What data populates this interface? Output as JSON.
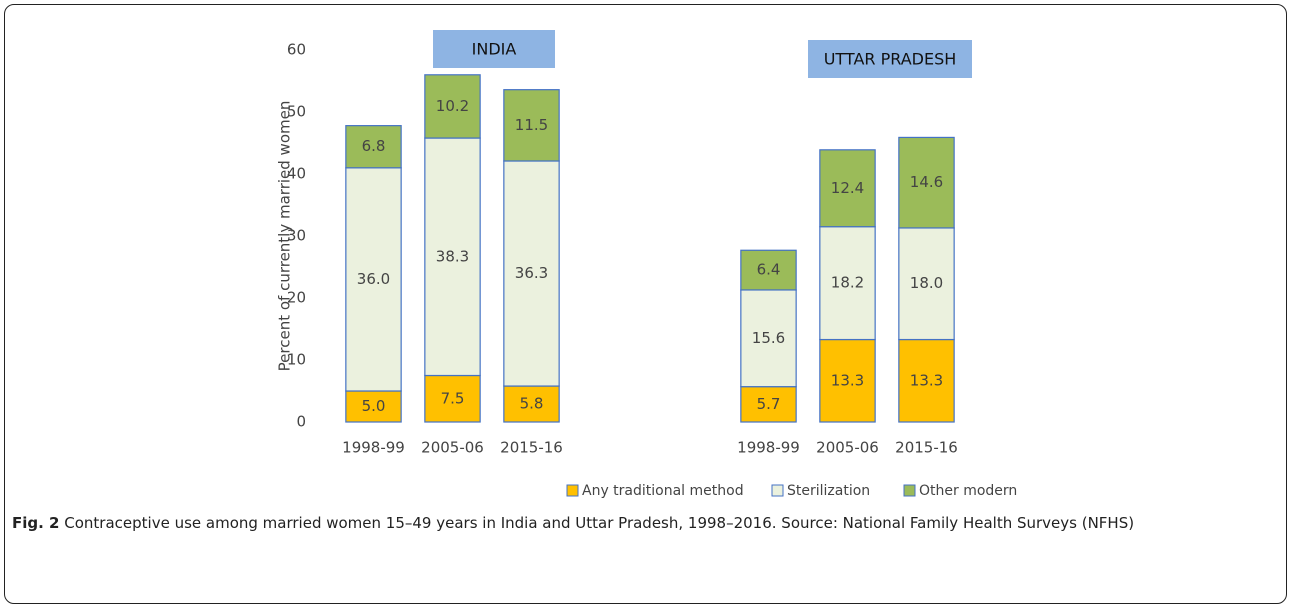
{
  "chart_data": {
    "type": "stacked-bar",
    "y_label": "Percent of currently married women",
    "annotations": [
      "INDIA",
      "UTTAR PRADESH"
    ],
    "annotation_color": "#8eb4e3",
    "categories": [
      "1998-99",
      "2005-06",
      "2015-16",
      null,
      null,
      "1998-99",
      "2005-06",
      "2015-16"
    ],
    "series": [
      {
        "name": "Any traditional method",
        "color": "#ffc000",
        "values": [
          5.0,
          7.5,
          5.8,
          null,
          null,
          5.7,
          13.3,
          13.3
        ],
        "value_labels": [
          "5.0",
          "7.5",
          "5.8",
          null,
          null,
          "5.7",
          "13.3",
          "13.3"
        ]
      },
      {
        "name": "Sterilization",
        "color": "#ebf1de",
        "values": [
          36.0,
          38.3,
          36.3,
          null,
          null,
          15.6,
          18.2,
          18.0
        ],
        "value_labels": [
          "36.0",
          "38.3",
          "36.3",
          null,
          null,
          "15.6",
          "18.2",
          "18.0"
        ]
      },
      {
        "name": "Other modern",
        "color": "#9bbb59",
        "values": [
          6.8,
          10.2,
          11.5,
          null,
          null,
          6.4,
          12.4,
          14.6
        ],
        "value_labels": [
          "6.8",
          "10.2",
          "11.5",
          null,
          null,
          "6.4",
          "12.4",
          "14.6"
        ]
      }
    ],
    "edge_color": "#4472c4",
    "ylim": [
      0,
      60
    ],
    "yticks": [
      0,
      10,
      20,
      30,
      40,
      50,
      60
    ],
    "grid": false,
    "legend": "bottom"
  },
  "caption": {
    "label": "Fig. 2",
    "text": "Contraceptive use among married women 15–49 years in India and Uttar Pradesh, 1998–2016. Source: National Family Health Surveys (NFHS)"
  }
}
